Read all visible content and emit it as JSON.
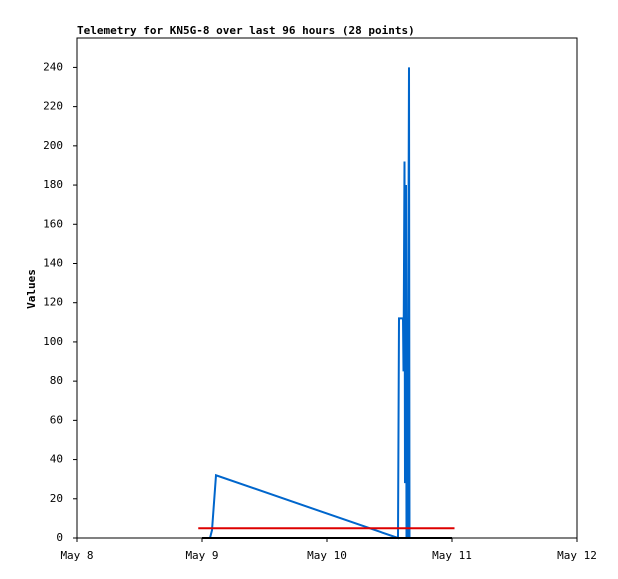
{
  "chart_data": {
    "type": "line",
    "title": "Telemetry for KN5G-8 over last 96 hours (28 points)",
    "ylabel": "Values",
    "xlim": [
      8,
      12
    ],
    "xticks": [
      {
        "value": 8,
        "label": "May 8"
      },
      {
        "value": 9,
        "label": "May 9"
      },
      {
        "value": 10,
        "label": "May 10"
      },
      {
        "value": 11,
        "label": "May 11"
      },
      {
        "value": 12,
        "label": "May 12"
      }
    ],
    "ylim": [
      0,
      255
    ],
    "yticks": [
      0,
      20,
      40,
      60,
      80,
      100,
      120,
      140,
      160,
      180,
      200,
      220,
      240
    ],
    "series": [
      {
        "color": "#0066cc",
        "x": [
          9.064,
          9.08,
          9.112,
          10.568,
          10.576,
          10.608,
          10.612,
          10.62,
          10.624,
          10.632,
          10.636,
          10.64,
          10.644,
          10.656,
          10.66
        ],
        "values": [
          0,
          4,
          32,
          0,
          112,
          112,
          85,
          192,
          28,
          180,
          0,
          80,
          0,
          240,
          0
        ]
      },
      {
        "color": "#dd0000",
        "x": [
          8.97,
          11.02
        ],
        "values": [
          5,
          5
        ]
      },
      {
        "color": "#000000",
        "x": [
          9.0,
          11.0
        ],
        "values": [
          0,
          0
        ]
      }
    ]
  }
}
